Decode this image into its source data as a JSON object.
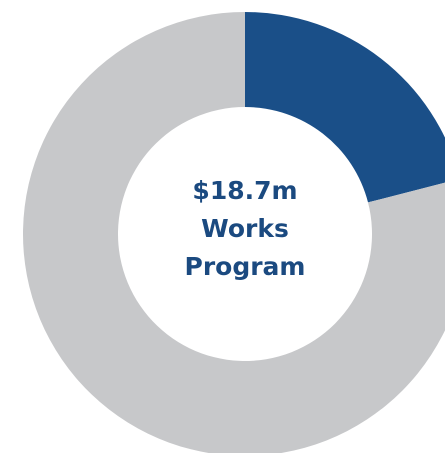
{
  "chart_data": {
    "type": "donut",
    "values": [
      21,
      79
    ],
    "colors": [
      "#1a4f88",
      "#c7c8ca"
    ],
    "center_label": [
      "$18.7m",
      "Works",
      "Program"
    ]
  }
}
